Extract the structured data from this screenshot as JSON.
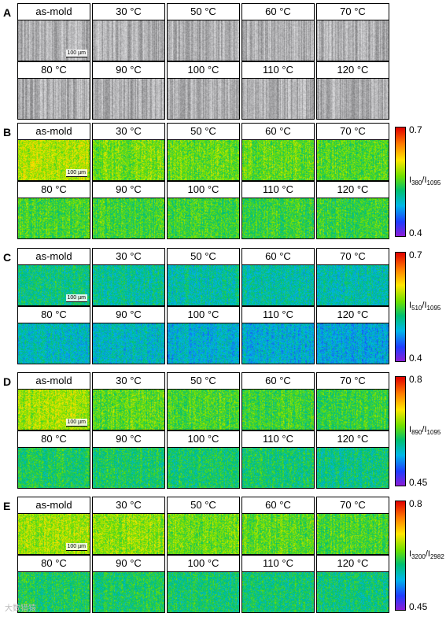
{
  "panels": [
    {
      "letter": "A",
      "type": "optical",
      "labels_top": [
        "as-mold",
        "30 °C",
        "50 °C",
        "60 °C",
        "70 °C"
      ],
      "labels_bottom": [
        "80 °C",
        "90 °C",
        "100 °C",
        "110 °C",
        "120 °C"
      ],
      "scale": "100 µm"
    },
    {
      "letter": "B",
      "type": "map",
      "labels_top": [
        "as-mold",
        "30 °C",
        "50 °C",
        "60 °C",
        "70 °C"
      ],
      "labels_bottom": [
        "80 °C",
        "90 °C",
        "100 °C",
        "110 °C",
        "120 °C"
      ],
      "scale": "100 µm",
      "colorbar": {
        "max": "0.7",
        "min": "0.4",
        "label_num": "380",
        "label_den": "1095"
      }
    },
    {
      "letter": "C",
      "type": "map",
      "labels_top": [
        "as-mold",
        "30 °C",
        "50 °C",
        "60 °C",
        "70 °C"
      ],
      "labels_bottom": [
        "80 °C",
        "90 °C",
        "100 °C",
        "110 °C",
        "120 °C"
      ],
      "scale": "100 µm",
      "colorbar": {
        "max": "0.7",
        "min": "0.4",
        "label_num": "510",
        "label_den": "1095"
      }
    },
    {
      "letter": "D",
      "type": "map",
      "labels_top": [
        "as-mold",
        "30 °C",
        "50 °C",
        "60 °C",
        "70 °C"
      ],
      "labels_bottom": [
        "80 °C",
        "90 °C",
        "100 °C",
        "110 °C",
        "120 °C"
      ],
      "scale": "100 µm",
      "colorbar": {
        "max": "0.8",
        "min": "0.45",
        "label_num": "890",
        "label_den": "1095"
      }
    },
    {
      "letter": "E",
      "type": "map",
      "labels_top": [
        "as-mold",
        "30 °C",
        "50 °C",
        "60 °C",
        "70 °C"
      ],
      "labels_bottom": [
        "80 °C",
        "90 °C",
        "100 °C",
        "110 °C",
        "120 °C"
      ],
      "scale": "100 µm",
      "colorbar": {
        "max": "0.8",
        "min": "0.45",
        "label_num": "3200",
        "label_den": "2982"
      }
    }
  ],
  "watermark": "大数猎猿"
}
